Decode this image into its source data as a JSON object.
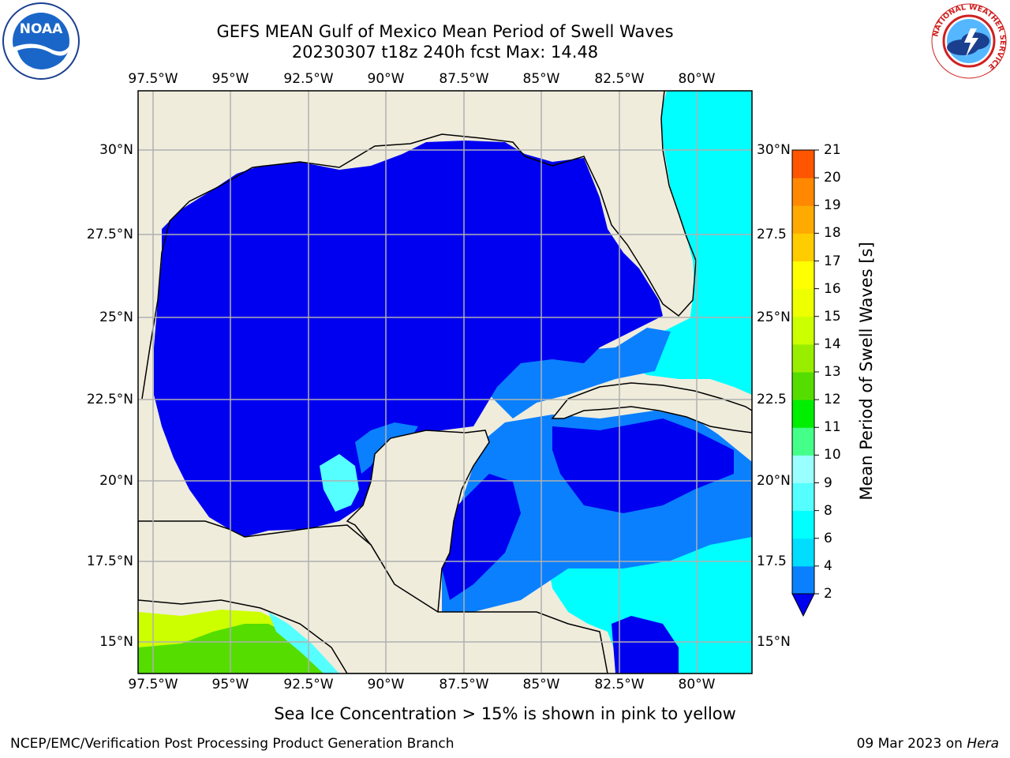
{
  "title_line1": "GEFS MEAN Gulf of Mexico Mean Period of Swell Waves",
  "title_line2": "20230307 t18z 240h fcst   Max: 14.48",
  "map": {
    "lon_labels": [
      "97.5°W",
      "95°W",
      "92.5°W",
      "90°W",
      "87.5°W",
      "85°W",
      "82.5°W",
      "80°W"
    ],
    "lat_labels_left": [
      "30°N",
      "27.5°N",
      "25°N",
      "22.5°N",
      "20°N",
      "17.5°N",
      "15°N"
    ],
    "lat_labels_right": [
      "30°N",
      "27.5",
      "25°N",
      "22.5",
      "20°N",
      "17.5",
      "15°N"
    ],
    "extent": {
      "lon_min": -98.0,
      "lon_max": -78.2,
      "lat_min": 14.0,
      "lat_max": 32.0
    },
    "colors": {
      "land": "#efecdc",
      "ocean_low": "#0000f0",
      "ocean_mid": "#0a80ff",
      "ocean_cyan": "#00ffff",
      "grid": "#b0b0b0"
    }
  },
  "colorbar": {
    "label": "Mean Period of Swell Waves [s]",
    "ticks": [
      "2",
      "4",
      "6",
      "8",
      "9",
      "10",
      "11",
      "12",
      "13",
      "14",
      "15",
      "16",
      "17",
      "18",
      "19",
      "20",
      "21"
    ],
    "colors": [
      "#0a80ff",
      "#00ddff",
      "#00ffff",
      "#55ffff",
      "#99ffff",
      "#44ff88",
      "#00ee00",
      "#55dd00",
      "#99ee00",
      "#ccff00",
      "#eeff00",
      "#ffff00",
      "#ffcc00",
      "#ffaa00",
      "#ff8800",
      "#ff5500",
      "#ff2200",
      "#ff0000"
    ],
    "under_color": "#0000f0"
  },
  "note": "Sea Ice Concentration > 15% is shown in pink to yellow",
  "footer_left": "NCEP/EMC/Verification Post Processing Product Generation Branch",
  "footer_date": "09 Mar 2023 on ",
  "footer_host": "Hera",
  "logos": {
    "noaa_text": "NOAA",
    "nws_ring_text": "NATIONAL WEATHER SERVICE"
  }
}
